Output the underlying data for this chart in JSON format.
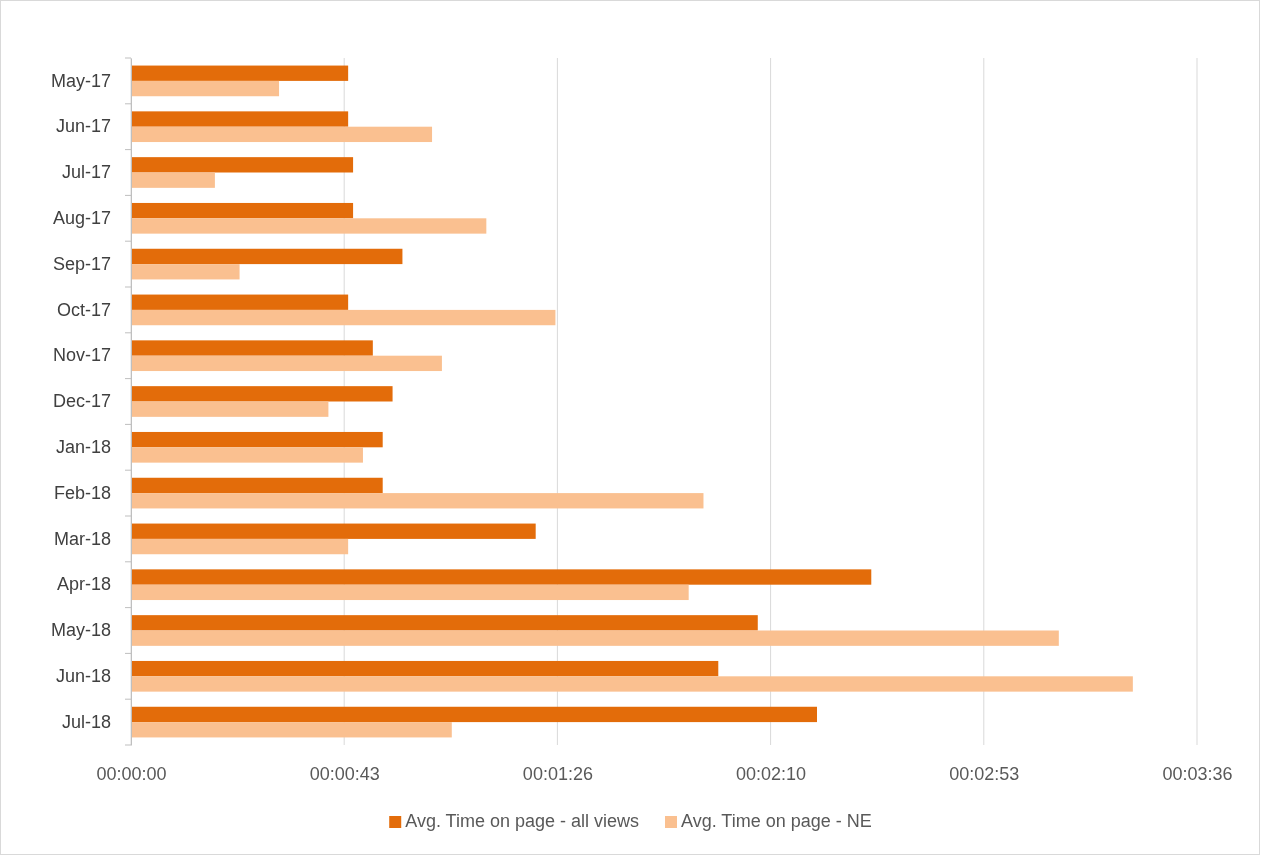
{
  "chart_data": {
    "type": "bar",
    "orientation": "horizontal",
    "categories": [
      "May-17",
      "Jun-17",
      "Jul-17",
      "Aug-17",
      "Sep-17",
      "Oct-17",
      "Nov-17",
      "Dec-17",
      "Jan-18",
      "Feb-18",
      "Mar-18",
      "Apr-18",
      "May-18",
      "Jun-18",
      "Jul-18"
    ],
    "series": [
      {
        "name": "Avg. Time on page - all views",
        "color": "#e36c0a",
        "values": [
          44,
          44,
          45,
          45,
          55,
          44,
          49,
          53,
          51,
          51,
          82,
          150,
          127,
          119,
          139
        ]
      },
      {
        "name": "Avg. Time on page - NE",
        "color": "#fac090",
        "values": [
          30,
          61,
          17,
          72,
          22,
          86,
          63,
          40,
          47,
          116,
          44,
          113,
          188,
          203,
          65
        ]
      }
    ],
    "xlim": [
      0,
      216
    ],
    "xticks": [
      {
        "value": 0,
        "label": "00:00:00"
      },
      {
        "value": 43.2,
        "label": "00:00:43"
      },
      {
        "value": 86.4,
        "label": "00:01:26"
      },
      {
        "value": 129.6,
        "label": "00:02:10"
      },
      {
        "value": 172.8,
        "label": "00:02:53"
      },
      {
        "value": 216,
        "label": "00:03:36"
      }
    ],
    "grid": "x",
    "legend": "bottom"
  }
}
